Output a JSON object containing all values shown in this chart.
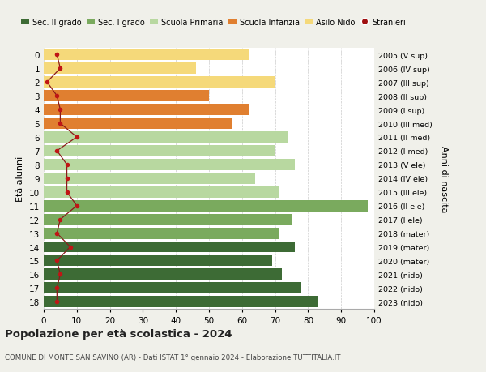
{
  "ages": [
    18,
    17,
    16,
    15,
    14,
    13,
    12,
    11,
    10,
    9,
    8,
    7,
    6,
    5,
    4,
    3,
    2,
    1,
    0
  ],
  "right_labels": [
    "2005 (V sup)",
    "2006 (IV sup)",
    "2007 (III sup)",
    "2008 (II sup)",
    "2009 (I sup)",
    "2010 (III med)",
    "2011 (II med)",
    "2012 (I med)",
    "2013 (V ele)",
    "2014 (IV ele)",
    "2015 (III ele)",
    "2016 (II ele)",
    "2017 (I ele)",
    "2018 (mater)",
    "2019 (mater)",
    "2020 (mater)",
    "2021 (nido)",
    "2022 (nido)",
    "2023 (nido)"
  ],
  "bar_values": [
    83,
    78,
    72,
    69,
    76,
    71,
    75,
    98,
    71,
    64,
    76,
    70,
    74,
    57,
    62,
    50,
    70,
    46,
    62
  ],
  "bar_colors": [
    "#3d6b35",
    "#3d6b35",
    "#3d6b35",
    "#3d6b35",
    "#3d6b35",
    "#7aaa5e",
    "#7aaa5e",
    "#7aaa5e",
    "#b8d8a0",
    "#b8d8a0",
    "#b8d8a0",
    "#b8d8a0",
    "#b8d8a0",
    "#e07f30",
    "#e07f30",
    "#e07f30",
    "#f5d97a",
    "#f5d97a",
    "#f5d97a"
  ],
  "stranieri_values": [
    4,
    4,
    5,
    4,
    8,
    4,
    5,
    10,
    7,
    7,
    7,
    4,
    10,
    5,
    5,
    4,
    1,
    5,
    4
  ],
  "legend_labels": [
    "Sec. II grado",
    "Sec. I grado",
    "Scuola Primaria",
    "Scuola Infanzia",
    "Asilo Nido",
    "Stranieri"
  ],
  "legend_colors": [
    "#3d6b35",
    "#7aaa5e",
    "#b8d8a0",
    "#e07f30",
    "#f5d97a",
    "#a01010"
  ],
  "title": "Popolazione per età scolastica - 2024",
  "subtitle": "COMUNE DI MONTE SAN SAVINO (AR) - Dati ISTAT 1° gennaio 2024 - Elaborazione TUTTITALIA.IT",
  "ylabel": "Età alunni",
  "right_ylabel": "Anni di nascita",
  "xticks": [
    0,
    10,
    20,
    30,
    40,
    50,
    60,
    70,
    80,
    90,
    100
  ],
  "xlim": [
    0,
    100
  ],
  "background_color": "#f0f0ea",
  "bar_background": "#ffffff",
  "grid_color": "#cccccc"
}
